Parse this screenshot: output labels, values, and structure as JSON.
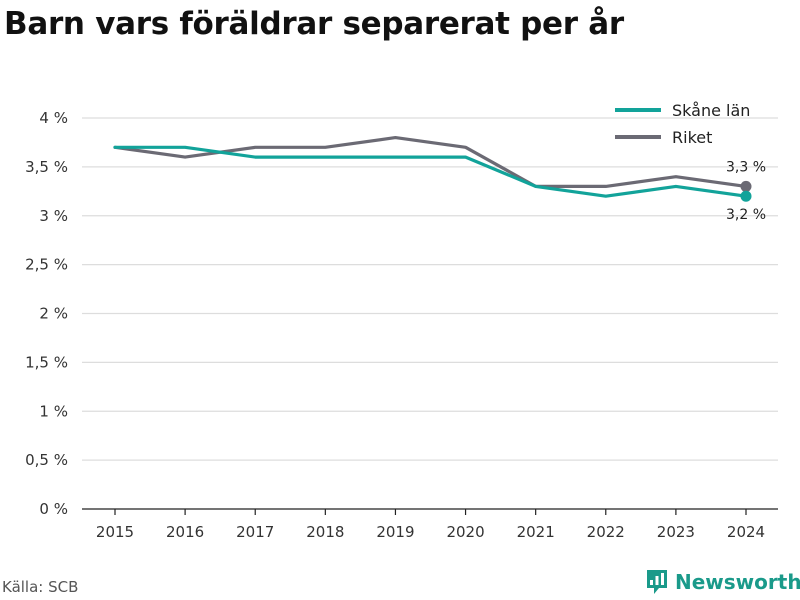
{
  "header": {
    "title": "Barn vars föräldrar separerat per år"
  },
  "footer": {
    "source": "Källa: SCB",
    "brand": "Newsworthy"
  },
  "colors": {
    "skane": "#12a39a",
    "riket": "#6b6a74",
    "grid": "#dddddd",
    "brand": "#1a9a8a"
  },
  "chart_data": {
    "type": "line",
    "title": "Barn vars föräldrar separerat per år",
    "xlabel": "",
    "ylabel": "",
    "categories": [
      "2015",
      "2016",
      "2017",
      "2018",
      "2019",
      "2020",
      "2021",
      "2022",
      "2023",
      "2024"
    ],
    "ylim": [
      0,
      4
    ],
    "yticks": [
      0,
      0.5,
      1,
      1.5,
      2,
      2.5,
      3,
      3.5,
      4
    ],
    "ytick_labels": [
      "0 %",
      "0,5 %",
      "1 %",
      "1,5 %",
      "2 %",
      "2,5 %",
      "3 %",
      "3,5 %",
      "4 %"
    ],
    "grid": true,
    "legend_position": "top-right",
    "series": [
      {
        "name": "Skåne län",
        "color": "#12a39a",
        "values": [
          3.7,
          3.7,
          3.6,
          3.6,
          3.6,
          3.6,
          3.3,
          3.2,
          3.3,
          3.2
        ],
        "end_label": "3,2 %"
      },
      {
        "name": "Riket",
        "color": "#6b6a74",
        "values": [
          3.7,
          3.6,
          3.7,
          3.7,
          3.8,
          3.7,
          3.3,
          3.3,
          3.4,
          3.3
        ],
        "end_label": "3,3 %"
      }
    ]
  }
}
